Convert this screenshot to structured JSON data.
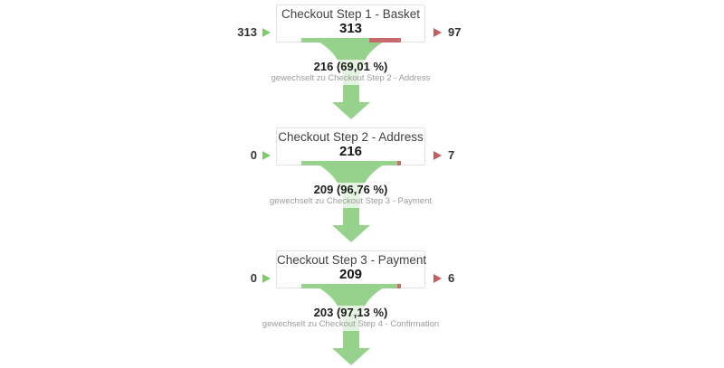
{
  "colors": {
    "green": "#96d28c",
    "red": "#c8696e",
    "arrow_green": "#82ca70",
    "arrow_red": "#c55f5f",
    "box_border": "#e4e4e4"
  },
  "funnel": {
    "steps": [
      {
        "title": "Checkout Step 1 - Basket",
        "value": "313",
        "entered": "313",
        "exited": "97",
        "green_pct": 69.01,
        "transition_value": "216 (69,01 %)",
        "transition_label": "gewechselt zu Checkout Step 2 - Address"
      },
      {
        "title": "Checkout Step 2 - Address",
        "value": "216",
        "entered": "0",
        "exited": "7",
        "green_pct": 96.76,
        "transition_value": "209 (96,76 %)",
        "transition_label": "gewechselt zu Checkout Step 3 - Payment"
      },
      {
        "title": "Checkout Step 3 - Payment",
        "value": "209",
        "entered": "0",
        "exited": "6",
        "green_pct": 97.13,
        "transition_value": "203 (97,13 %)",
        "transition_label": "gewechselt zu Checkout Step 4 - Confirmation"
      }
    ]
  },
  "chart_data": {
    "type": "funnel",
    "steps": [
      {
        "name": "Checkout Step 1 - Basket",
        "count": 313,
        "entered": 313,
        "dropped": 97,
        "proceeded": 216,
        "proceeded_pct": 69.01,
        "next_step": "Checkout Step 2 - Address"
      },
      {
        "name": "Checkout Step 2 - Address",
        "count": 216,
        "entered": 0,
        "dropped": 7,
        "proceeded": 209,
        "proceeded_pct": 96.76,
        "next_step": "Checkout Step 3 - Payment"
      },
      {
        "name": "Checkout Step 3 - Payment",
        "count": 209,
        "entered": 0,
        "dropped": 6,
        "proceeded": 203,
        "proceeded_pct": 97.13,
        "next_step": "Checkout Step 4 - Confirmation"
      }
    ]
  }
}
